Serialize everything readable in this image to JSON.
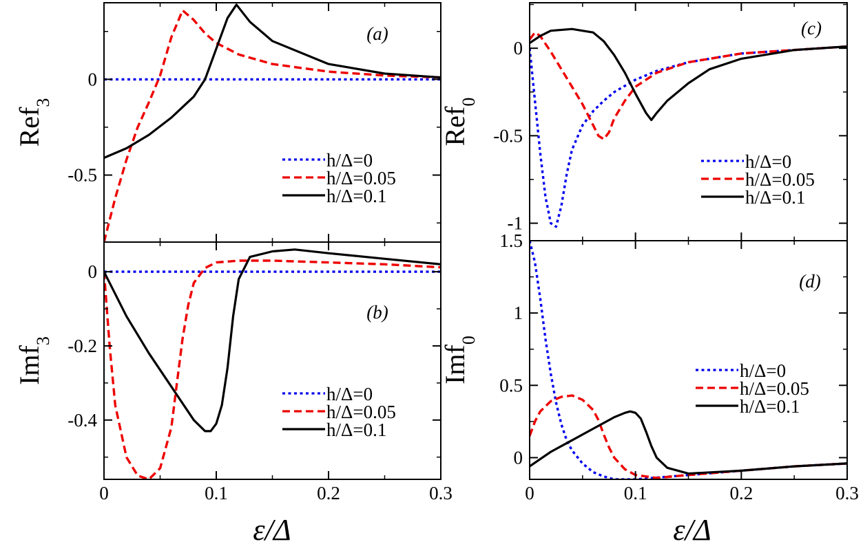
{
  "chart_data": [
    {
      "panel": "a",
      "type": "line",
      "panel_label": "(a)",
      "ylabel_main": "Ref",
      "ylabel_sub": "3",
      "xlabel": "",
      "xlim": [
        0,
        0.3
      ],
      "ylim": [
        -0.85,
        0.4
      ],
      "xticks": [
        0,
        0.1,
        0.2,
        0.3
      ],
      "xtick_labels": [
        "",
        "",
        "",
        ""
      ],
      "yticks": [
        0,
        -0.5
      ],
      "ytick_labels": [
        "0",
        "-0.5"
      ],
      "legend": "bottom-right",
      "series": [
        {
          "name": "h/Δ=0",
          "color": "#0000ee",
          "style": "dotted",
          "x": [
            0,
            0.3
          ],
          "y": [
            0,
            0
          ]
        },
        {
          "name": "h/Δ=0.05",
          "color": "#ee0000",
          "style": "dashed",
          "x": [
            0,
            0.01,
            0.02,
            0.03,
            0.04,
            0.05,
            0.06,
            0.07,
            0.08,
            0.09,
            0.1,
            0.11,
            0.12,
            0.15,
            0.2,
            0.25,
            0.3
          ],
          "y": [
            -0.85,
            -0.62,
            -0.42,
            -0.25,
            -0.12,
            0.02,
            0.22,
            0.36,
            0.31,
            0.24,
            0.19,
            0.16,
            0.13,
            0.08,
            0.04,
            0.02,
            0.01
          ]
        },
        {
          "name": "h/Δ=0.1",
          "color": "#000000",
          "style": "solid",
          "x": [
            0,
            0.02,
            0.04,
            0.06,
            0.08,
            0.09,
            0.1,
            0.11,
            0.118,
            0.13,
            0.15,
            0.2,
            0.25,
            0.3
          ],
          "y": [
            -0.41,
            -0.36,
            -0.29,
            -0.2,
            -0.09,
            0.0,
            0.16,
            0.32,
            0.39,
            0.3,
            0.2,
            0.08,
            0.03,
            0.01
          ]
        }
      ]
    },
    {
      "panel": "b",
      "type": "line",
      "panel_label": "(b)",
      "ylabel_main": "Imf",
      "ylabel_sub": "3",
      "xlabel": "ε/Δ",
      "xlim": [
        0,
        0.3
      ],
      "ylim": [
        -0.56,
        0.08
      ],
      "xticks": [
        0,
        0.1,
        0.2,
        0.3
      ],
      "xtick_labels": [
        "0",
        "0.1",
        "0.2",
        "0.3"
      ],
      "yticks": [
        0,
        -0.2,
        -0.4
      ],
      "ytick_labels": [
        "0",
        "-0.2",
        "-0.4"
      ],
      "legend": "bottom-right",
      "series": [
        {
          "name": "h/Δ=0",
          "color": "#0000ee",
          "style": "dotted",
          "x": [
            0,
            0.3
          ],
          "y": [
            0,
            0
          ]
        },
        {
          "name": "h/Δ=0.05",
          "color": "#ee0000",
          "style": "dashed",
          "x": [
            0,
            0.005,
            0.01,
            0.02,
            0.03,
            0.04,
            0.05,
            0.06,
            0.065,
            0.07,
            0.075,
            0.08,
            0.09,
            0.1,
            0.12,
            0.15,
            0.2,
            0.25,
            0.3
          ],
          "y": [
            0,
            -0.2,
            -0.36,
            -0.5,
            -0.55,
            -0.56,
            -0.53,
            -0.42,
            -0.3,
            -0.18,
            -0.09,
            -0.03,
            0.01,
            0.025,
            0.03,
            0.03,
            0.025,
            0.02,
            0.012
          ]
        },
        {
          "name": "h/Δ=0.1",
          "color": "#000000",
          "style": "solid",
          "x": [
            0,
            0.02,
            0.04,
            0.06,
            0.08,
            0.09,
            0.095,
            0.1,
            0.105,
            0.11,
            0.115,
            0.12,
            0.13,
            0.15,
            0.17,
            0.2,
            0.25,
            0.3
          ],
          "y": [
            0,
            -0.12,
            -0.22,
            -0.31,
            -0.4,
            -0.43,
            -0.43,
            -0.41,
            -0.36,
            -0.26,
            -0.12,
            -0.02,
            0.04,
            0.055,
            0.06,
            0.05,
            0.035,
            0.02
          ]
        }
      ]
    },
    {
      "panel": "c",
      "type": "line",
      "panel_label": "(c)",
      "ylabel_main": "Ref",
      "ylabel_sub": "0",
      "xlabel": "",
      "xlim": [
        0,
        0.3
      ],
      "ylim": [
        -1.1,
        0.26
      ],
      "xticks": [
        0,
        0.1,
        0.2,
        0.3
      ],
      "xtick_labels": [
        "",
        "",
        "",
        ""
      ],
      "yticks": [
        0,
        -0.5,
        -1
      ],
      "ytick_labels": [
        "0",
        "-0.5",
        "-1"
      ],
      "legend": "bottom-right",
      "series": [
        {
          "name": "h/Δ=0",
          "color": "#0000ee",
          "style": "dotted",
          "x": [
            0,
            0.005,
            0.01,
            0.015,
            0.02,
            0.025,
            0.03,
            0.035,
            0.04,
            0.05,
            0.06,
            0.07,
            0.08,
            0.1,
            0.12,
            0.15,
            0.2,
            0.25,
            0.3
          ],
          "y": [
            0,
            -0.3,
            -0.6,
            -0.85,
            -1.0,
            -1.02,
            -0.9,
            -0.72,
            -0.58,
            -0.44,
            -0.36,
            -0.3,
            -0.25,
            -0.18,
            -0.13,
            -0.08,
            -0.03,
            -0.01,
            0.01
          ]
        },
        {
          "name": "h/Δ=0.05",
          "color": "#ee0000",
          "style": "dashed",
          "x": [
            0,
            0.005,
            0.01,
            0.02,
            0.03,
            0.04,
            0.05,
            0.06,
            0.065,
            0.07,
            0.075,
            0.08,
            0.09,
            0.1,
            0.12,
            0.15,
            0.2,
            0.25,
            0.3
          ],
          "y": [
            0.05,
            0.09,
            0.07,
            -0.02,
            -0.12,
            -0.22,
            -0.32,
            -0.44,
            -0.5,
            -0.52,
            -0.48,
            -0.4,
            -0.3,
            -0.22,
            -0.14,
            -0.08,
            -0.03,
            -0.01,
            0.01
          ]
        },
        {
          "name": "h/Δ=0.1",
          "color": "#000000",
          "style": "solid",
          "x": [
            0,
            0.01,
            0.02,
            0.04,
            0.06,
            0.07,
            0.08,
            0.09,
            0.1,
            0.11,
            0.115,
            0.12,
            0.13,
            0.15,
            0.17,
            0.2,
            0.25,
            0.3
          ],
          "y": [
            0.03,
            0.07,
            0.1,
            0.11,
            0.09,
            0.04,
            -0.04,
            -0.14,
            -0.26,
            -0.37,
            -0.41,
            -0.37,
            -0.3,
            -0.2,
            -0.12,
            -0.06,
            -0.01,
            0.01
          ]
        }
      ]
    },
    {
      "panel": "d",
      "type": "line",
      "panel_label": "(d)",
      "ylabel_main": "Imf",
      "ylabel_sub": "0",
      "xlabel": "ε/Δ",
      "xlim": [
        0,
        0.3
      ],
      "ylim": [
        -0.15,
        1.5
      ],
      "xticks": [
        0,
        0.1,
        0.2,
        0.3
      ],
      "xtick_labels": [
        "0",
        "0.1",
        "0.2",
        "0.3"
      ],
      "yticks": [
        1.5,
        1,
        0.5,
        0
      ],
      "ytick_labels": [
        "1.5",
        "1",
        "0.5",
        "0"
      ],
      "legend": "bottom-right",
      "series": [
        {
          "name": "h/Δ=0",
          "color": "#0000ee",
          "style": "dotted",
          "x": [
            0,
            0.005,
            0.01,
            0.015,
            0.02,
            0.025,
            0.03,
            0.035,
            0.04,
            0.05,
            0.06,
            0.07,
            0.08,
            0.1,
            0.15,
            0.2,
            0.25,
            0.3
          ],
          "y": [
            1.5,
            1.35,
            1.1,
            0.82,
            0.58,
            0.38,
            0.23,
            0.12,
            0.05,
            -0.04,
            -0.1,
            -0.13,
            -0.15,
            -0.15,
            -0.12,
            -0.09,
            -0.06,
            -0.04
          ]
        },
        {
          "name": "h/Δ=0.05",
          "color": "#ee0000",
          "style": "dashed",
          "x": [
            0,
            0.005,
            0.01,
            0.02,
            0.03,
            0.04,
            0.05,
            0.06,
            0.065,
            0.07,
            0.075,
            0.08,
            0.09,
            0.1,
            0.12,
            0.15,
            0.2,
            0.25,
            0.3
          ],
          "y": [
            0.15,
            0.25,
            0.32,
            0.39,
            0.42,
            0.43,
            0.4,
            0.33,
            0.26,
            0.16,
            0.07,
            0.0,
            -0.08,
            -0.12,
            -0.14,
            -0.12,
            -0.09,
            -0.06,
            -0.04
          ]
        },
        {
          "name": "h/Δ=0.1",
          "color": "#000000",
          "style": "solid",
          "x": [
            0,
            0.02,
            0.04,
            0.06,
            0.08,
            0.09,
            0.095,
            0.1,
            0.105,
            0.11,
            0.115,
            0.12,
            0.13,
            0.15,
            0.2,
            0.25,
            0.3
          ],
          "y": [
            -0.06,
            0.04,
            0.12,
            0.2,
            0.28,
            0.31,
            0.32,
            0.31,
            0.27,
            0.18,
            0.08,
            0.0,
            -0.07,
            -0.11,
            -0.09,
            -0.06,
            -0.04
          ]
        }
      ]
    }
  ]
}
